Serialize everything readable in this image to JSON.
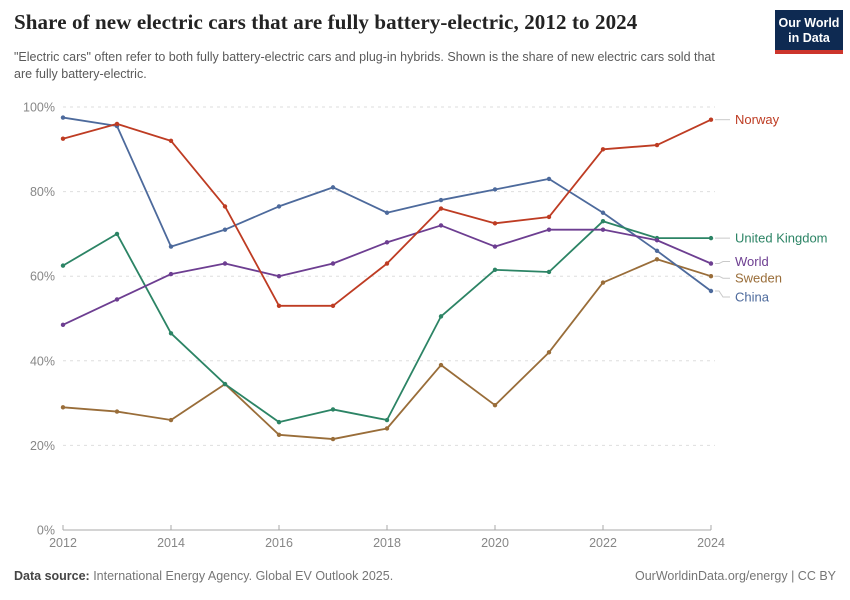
{
  "header": {
    "title": "Share of new electric cars that are fully battery-electric, 2012 to 2024",
    "subtitle": "\"Electric cars\" often refer to both fully battery-electric cars and plug-in hybrids. Shown is the share of new electric cars sold that are fully battery-electric.",
    "logo": {
      "line1": "Our World",
      "line2": "in Data",
      "bg_color": "#0e2a52",
      "accent_color": "#cc352c"
    }
  },
  "chart_data": {
    "type": "line",
    "title": "Share of new electric cars that are fully battery-electric, 2012 to 2024",
    "x": [
      2012,
      2013,
      2014,
      2015,
      2016,
      2017,
      2018,
      2019,
      2020,
      2021,
      2022,
      2023,
      2024
    ],
    "series": [
      {
        "name": "Sweden",
        "color": "#996d39",
        "label_dy": 2,
        "values": [
          29,
          28,
          26,
          34.5,
          22.5,
          21.5,
          24,
          39,
          29.5,
          42,
          58.5,
          64,
          60
        ]
      },
      {
        "name": "China",
        "color": "#4d6a9c",
        "label_dy": 6,
        "values": [
          97.5,
          95.5,
          67,
          71,
          76.5,
          81,
          75,
          78,
          80.5,
          83,
          75,
          66,
          56.5
        ]
      },
      {
        "name": "United Kingdom",
        "color": "#2c8465",
        "label_dy": 0,
        "values": [
          62.5,
          70,
          46.5,
          34.5,
          25.5,
          28.5,
          26,
          50.5,
          61.5,
          61,
          73,
          69,
          69
        ]
      },
      {
        "name": "World",
        "color": "#6d3e91",
        "label_dy": -2,
        "values": [
          48.5,
          54.5,
          60.5,
          63,
          60,
          63,
          68,
          72,
          67,
          71,
          71,
          68.5,
          63
        ]
      },
      {
        "name": "Norway",
        "color": "#be3c23",
        "label_dy": 0,
        "values": [
          92.5,
          96,
          92,
          76.5,
          53,
          53,
          63,
          76,
          72.5,
          74,
          90,
          91,
          97
        ]
      }
    ],
    "xlabel": "",
    "ylabel": "",
    "ylim": [
      0,
      100
    ],
    "yticks": [
      0,
      20,
      40,
      60,
      80,
      100
    ],
    "ytick_suffix": "%",
    "xticks": [
      2012,
      2014,
      2016,
      2018,
      2020,
      2022,
      2024
    ],
    "grid": "horizontal-dashed",
    "legend_position": "right-edge-line-labels"
  },
  "footer": {
    "source_label": "Data source:",
    "source_text": " International Energy Agency. Global EV Outlook 2025.",
    "rights": "OurWorldinData.org/energy | CC BY"
  }
}
